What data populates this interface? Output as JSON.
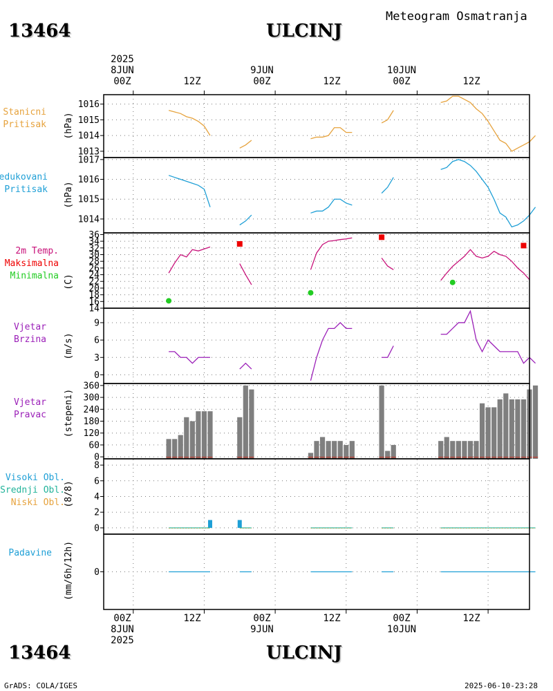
{
  "header": {
    "station_id": "13464",
    "station_name": "ULCINJ",
    "title": "Meteogram Osmatranja"
  },
  "footer": {
    "station_id": "13464",
    "station_name": "ULCINJ",
    "credit": "GrADS: COLA/IGES",
    "timestamp": "2025-06-10-23:28"
  },
  "time_axis": {
    "ticks_top": [
      {
        "l1": "2025",
        "l2": "8JUN",
        "l3": "00Z"
      },
      {
        "l1": "",
        "l2": "",
        "l3": "12Z"
      },
      {
        "l1": "",
        "l2": "9JUN",
        "l3": "00Z"
      },
      {
        "l1": "",
        "l2": "",
        "l3": "12Z"
      },
      {
        "l1": "",
        "l2": "10JUN",
        "l3": "00Z"
      },
      {
        "l1": "",
        "l2": "",
        "l3": "12Z"
      }
    ],
    "ticks_bottom": [
      {
        "l1": "00Z",
        "l2": "8JUN",
        "l3": "2025"
      },
      {
        "l1": "12Z",
        "l2": "",
        "l3": ""
      },
      {
        "l1": "00Z",
        "l2": "9JUN",
        "l3": ""
      },
      {
        "l1": "12Z",
        "l2": "",
        "l3": ""
      },
      {
        "l1": "00Z",
        "l2": "10JUN",
        "l3": ""
      },
      {
        "l1": "12Z",
        "l2": "",
        "l3": ""
      }
    ]
  },
  "panels": {
    "station_pressure": {
      "label1": "Stanicni",
      "label2": "Pritisak",
      "unit": "(hPa)"
    },
    "reduced_pressure": {
      "label1": "Redukovani",
      "label2": "Pritisak",
      "unit": "(hPa)"
    },
    "temperature": {
      "label1": "2m Temp.",
      "label2": "Maksimalna",
      "label3": "Minimalna",
      "unit": "(C)"
    },
    "wind_speed": {
      "label1": "Vjetar",
      "label2": "Brzina",
      "unit": "(m/s)"
    },
    "wind_dir": {
      "label1": "Vjetar",
      "label2": "Pravac",
      "unit": "(stepeni)"
    },
    "clouds": {
      "label1": "Visoki Obl.",
      "label2": "Srednji Obl.",
      "label3": "Niski Obl.",
      "unit": "(8/8)"
    },
    "precip": {
      "label1": "Padavine",
      "unit": "(mm/6h/12h)"
    }
  },
  "colors": {
    "station_pressure": "#e6a23c",
    "reduced_pressure": "#1e9fd6",
    "temperature": "#c8127a",
    "tmax": "#ee0000",
    "tmin": "#22cc22",
    "wind": "#9b1fb8",
    "bars": "#7f7f7f",
    "high_cloud": "#1e9fd6",
    "mid_cloud": "#22b39a",
    "low_cloud": "#e6a23c",
    "precip": "#1e9fd6"
  },
  "chart_data": {
    "type": "line",
    "title": "Meteogram Osmatranja",
    "x_unit": "hours since 2025-06-08 00Z",
    "x_range": [
      -5,
      67
    ],
    "x_ticks": [
      0,
      12,
      24,
      36,
      48,
      60
    ],
    "series": [
      {
        "panel": "station_pressure",
        "name": "Stanicni Pritisak",
        "type": "line",
        "ylim": [
          1012.6,
          1016.6
        ],
        "yticks": [
          1013,
          1014,
          1015,
          1016
        ],
        "segments": [
          [
            [
              6,
              1015.6
            ],
            [
              7,
              1015.5
            ],
            [
              8,
              1015.4
            ],
            [
              9,
              1015.2
            ],
            [
              10,
              1015.1
            ],
            [
              11,
              1014.9
            ],
            [
              12,
              1014.6
            ],
            [
              13,
              1014.0
            ]
          ],
          [
            [
              18,
              1013.2
            ],
            [
              19,
              1013.4
            ],
            [
              20,
              1013.7
            ]
          ],
          [
            [
              30,
              1013.8
            ],
            [
              31,
              1013.9
            ],
            [
              32,
              1013.9
            ],
            [
              33,
              1014.0
            ],
            [
              34,
              1014.5
            ],
            [
              35,
              1014.5
            ],
            [
              36,
              1014.2
            ],
            [
              37,
              1014.2
            ]
          ],
          [
            [
              42,
              1014.8
            ],
            [
              43,
              1015.0
            ],
            [
              44,
              1015.6
            ]
          ],
          [
            [
              52,
              1016.1
            ],
            [
              53,
              1016.2
            ],
            [
              54,
              1016.5
            ],
            [
              55,
              1016.5
            ],
            [
              56,
              1016.3
            ],
            [
              57,
              1016.1
            ],
            [
              58,
              1015.7
            ],
            [
              59,
              1015.4
            ],
            [
              60,
              1014.9
            ],
            [
              61,
              1014.3
            ],
            [
              62,
              1013.7
            ],
            [
              63,
              1013.5
            ],
            [
              64,
              1013.0
            ],
            [
              65,
              1013.2
            ],
            [
              66,
              1013.4
            ],
            [
              67,
              1013.6
            ],
            [
              68,
              1014.0
            ]
          ]
        ]
      },
      {
        "panel": "reduced_pressure",
        "name": "Redukovani Pritisak",
        "type": "line",
        "ylim": [
          1013.3,
          1017.1
        ],
        "yticks": [
          1014,
          1015,
          1016,
          1017
        ],
        "segments": [
          [
            [
              6,
              1016.2
            ],
            [
              7,
              1016.1
            ],
            [
              8,
              1016.0
            ],
            [
              9,
              1015.9
            ],
            [
              10,
              1015.8
            ],
            [
              11,
              1015.7
            ],
            [
              12,
              1015.5
            ],
            [
              13,
              1014.6
            ]
          ],
          [
            [
              18,
              1013.7
            ],
            [
              19,
              1013.9
            ],
            [
              20,
              1014.2
            ]
          ],
          [
            [
              30,
              1014.3
            ],
            [
              31,
              1014.4
            ],
            [
              32,
              1014.4
            ],
            [
              33,
              1014.6
            ],
            [
              34,
              1015.0
            ],
            [
              35,
              1015.0
            ],
            [
              36,
              1014.8
            ],
            [
              37,
              1014.7
            ]
          ],
          [
            [
              42,
              1015.3
            ],
            [
              43,
              1015.6
            ],
            [
              44,
              1016.1
            ]
          ],
          [
            [
              52,
              1016.5
            ],
            [
              53,
              1016.6
            ],
            [
              54,
              1016.9
            ],
            [
              55,
              1017.0
            ],
            [
              56,
              1016.9
            ],
            [
              57,
              1016.7
            ],
            [
              58,
              1016.4
            ],
            [
              59,
              1016.0
            ],
            [
              60,
              1015.6
            ],
            [
              61,
              1015.0
            ],
            [
              62,
              1014.3
            ],
            [
              63,
              1014.1
            ],
            [
              64,
              1013.6
            ],
            [
              65,
              1013.7
            ],
            [
              66,
              1013.9
            ],
            [
              67,
              1014.2
            ],
            [
              68,
              1014.6
            ]
          ]
        ]
      },
      {
        "panel": "temperature",
        "name": "2m Temp.",
        "type": "line",
        "ylim": [
          14,
          36.5
        ],
        "yticks": [
          14,
          16,
          18,
          20,
          22,
          24,
          26,
          28,
          30,
          32,
          34,
          36
        ],
        "segments": [
          [
            [
              6,
              24.5
            ],
            [
              7,
              27.5
            ],
            [
              8,
              30
            ],
            [
              9,
              29.3
            ],
            [
              10,
              31.5
            ],
            [
              11,
              31.1
            ],
            [
              12,
              31.7
            ],
            [
              13,
              32.3
            ]
          ],
          [
            [
              18,
              27.3
            ],
            [
              19,
              24
            ],
            [
              20,
              21
            ]
          ],
          [
            [
              30,
              25.5
            ],
            [
              31,
              30.5
            ],
            [
              32,
              33
            ],
            [
              33,
              34
            ],
            [
              34,
              34.2
            ],
            [
              35,
              34.5
            ],
            [
              36,
              34.7
            ],
            [
              37,
              35
            ]
          ],
          [
            [
              42,
              29
            ],
            [
              43,
              26.6
            ],
            [
              44,
              25.5
            ]
          ],
          [
            [
              52,
              22.3
            ],
            [
              53,
              24.5
            ],
            [
              54,
              26.5
            ],
            [
              55,
              28
            ],
            [
              56,
              29.5
            ],
            [
              57,
              31.5
            ],
            [
              58,
              29.5
            ],
            [
              59,
              29
            ],
            [
              60,
              29.5
            ],
            [
              61,
              31
            ],
            [
              62,
              30
            ],
            [
              63,
              29.5
            ],
            [
              64,
              28
            ],
            [
              65,
              26
            ],
            [
              66,
              24.5
            ],
            [
              67,
              22.5
            ]
          ]
        ]
      },
      {
        "panel": "temperature",
        "name": "Maksimalna",
        "type": "scatter",
        "marker": "square",
        "points": [
          [
            18,
            33.2
          ],
          [
            42,
            35.2
          ],
          [
            66,
            32.7
          ]
        ]
      },
      {
        "panel": "temperature",
        "name": "Minimalna",
        "type": "scatter",
        "marker": "circle",
        "points": [
          [
            6,
            16.2
          ],
          [
            30,
            18.6
          ],
          [
            54,
            21.7
          ]
        ]
      },
      {
        "panel": "wind_speed",
        "name": "Vjetar Brzina",
        "type": "line",
        "ylim": [
          -1.5,
          11.5
        ],
        "yticks": [
          0,
          3,
          6,
          9
        ],
        "segments": [
          [
            [
              6,
              4
            ],
            [
              7,
              4
            ],
            [
              8,
              3
            ],
            [
              9,
              3
            ],
            [
              10,
              2
            ],
            [
              11,
              3
            ],
            [
              12,
              3
            ],
            [
              13,
              3
            ]
          ],
          [
            [
              18,
              1
            ],
            [
              19,
              2
            ],
            [
              20,
              1
            ]
          ],
          [
            [
              30,
              -1
            ],
            [
              31,
              3
            ],
            [
              32,
              6
            ],
            [
              33,
              8
            ],
            [
              34,
              8
            ],
            [
              35,
              9
            ],
            [
              36,
              8
            ],
            [
              37,
              8
            ]
          ],
          [
            [
              42,
              3
            ],
            [
              43,
              3
            ],
            [
              44,
              5
            ]
          ],
          [
            [
              52,
              7
            ],
            [
              53,
              7
            ],
            [
              54,
              8
            ],
            [
              55,
              9
            ],
            [
              56,
              9
            ],
            [
              57,
              11
            ],
            [
              58,
              6
            ],
            [
              59,
              4
            ],
            [
              60,
              6
            ],
            [
              61,
              5
            ],
            [
              62,
              4
            ],
            [
              63,
              4
            ],
            [
              64,
              4
            ],
            [
              65,
              4
            ],
            [
              66,
              2
            ],
            [
              67,
              3
            ],
            [
              68,
              2
            ]
          ]
        ]
      },
      {
        "panel": "wind_dir",
        "name": "Vjetar Pravac",
        "type": "bar",
        "ylim": [
          -10,
          370
        ],
        "yticks": [
          0,
          60,
          120,
          180,
          240,
          300,
          360
        ],
        "bars": [
          [
            6,
            90
          ],
          [
            7,
            90
          ],
          [
            8,
            110
          ],
          [
            9,
            200
          ],
          [
            10,
            180
          ],
          [
            11,
            230
          ],
          [
            12,
            230
          ],
          [
            13,
            230
          ],
          [
            18,
            200
          ],
          [
            19,
            360
          ],
          [
            20,
            340
          ],
          [
            30,
            20
          ],
          [
            31,
            80
          ],
          [
            32,
            100
          ],
          [
            33,
            80
          ],
          [
            34,
            80
          ],
          [
            35,
            80
          ],
          [
            36,
            60
          ],
          [
            37,
            80
          ],
          [
            42,
            360
          ],
          [
            43,
            30
          ],
          [
            44,
            60
          ],
          [
            52,
            80
          ],
          [
            53,
            100
          ],
          [
            54,
            80
          ],
          [
            55,
            80
          ],
          [
            56,
            80
          ],
          [
            57,
            80
          ],
          [
            58,
            80
          ],
          [
            59,
            270
          ],
          [
            60,
            250
          ],
          [
            61,
            250
          ],
          [
            62,
            290
          ],
          [
            63,
            320
          ],
          [
            64,
            290
          ],
          [
            65,
            290
          ],
          [
            66,
            290
          ],
          [
            67,
            340
          ],
          [
            68,
            360
          ]
        ]
      },
      {
        "panel": "clouds",
        "name": "Visoki Obl.",
        "type": "bar",
        "ylim": [
          -0.8,
          8.8
        ],
        "yticks": [
          0,
          2,
          4,
          6,
          8
        ],
        "bars": [
          [
            13,
            1
          ],
          [
            18,
            1
          ]
        ]
      },
      {
        "panel": "precip",
        "name": "Padavine",
        "type": "bar",
        "ylim": [
          -5,
          5
        ],
        "yticks": [
          0
        ],
        "bars": []
      }
    ]
  }
}
